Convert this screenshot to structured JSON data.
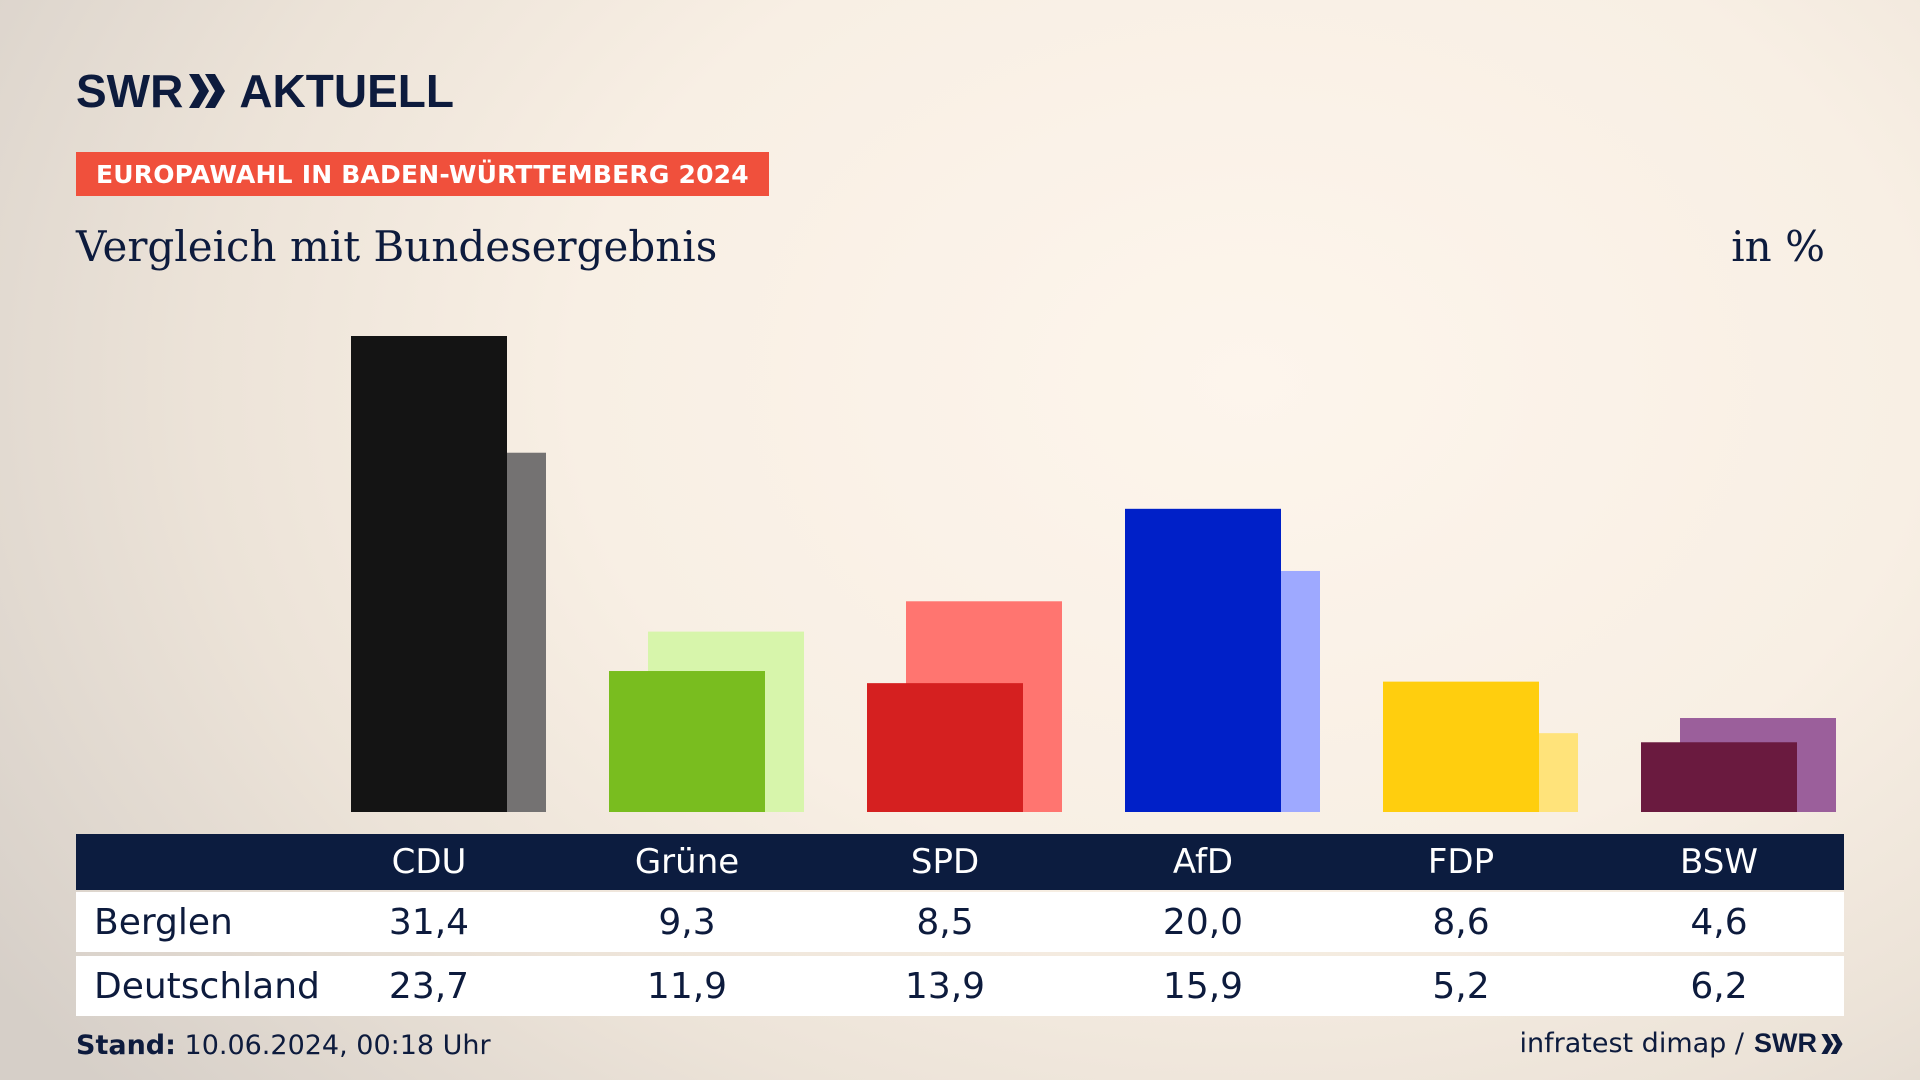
{
  "brand": {
    "part1": "SWR",
    "part2": "AKTUELL"
  },
  "badge": "EUROPAWAHL IN BADEN-WÜRTTEMBERG 2024",
  "subtitle": "Vergleich mit Bundesergebnis",
  "unit": "in %",
  "chart_data": {
    "type": "bar",
    "categories": [
      "CDU",
      "Grüne",
      "SPD",
      "AfD",
      "FDP",
      "BSW"
    ],
    "series": [
      {
        "name": "Berglen",
        "values": [
          31.4,
          9.3,
          8.5,
          20.0,
          8.6,
          4.6
        ],
        "colors": [
          "#141414",
          "#79bd1f",
          "#d52020",
          "#0020c8",
          "#ffce0e",
          "#6a1a3f"
        ]
      },
      {
        "name": "Deutschland",
        "values": [
          23.7,
          11.9,
          13.9,
          15.9,
          5.2,
          6.2
        ],
        "colors": [
          "#747272",
          "#d7f5ab",
          "#ff7570",
          "#9ea9ff",
          "#ffe37a",
          "#9b5f9b"
        ]
      }
    ],
    "display_values": {
      "Berglen": [
        "31,4",
        "9,3",
        "8,5",
        "20,0",
        "8,6",
        "4,6"
      ],
      "Deutschland": [
        "23,7",
        "11,9",
        "13,9",
        "15,9",
        "5,2",
        "6,2"
      ]
    },
    "ylim": [
      0,
      31.4
    ]
  },
  "footer": {
    "stand_label": "Stand:",
    "stand_value": "10.06.2024, 00:18 Uhr",
    "source": "infratest dimap /",
    "source_brand": "SWR"
  }
}
